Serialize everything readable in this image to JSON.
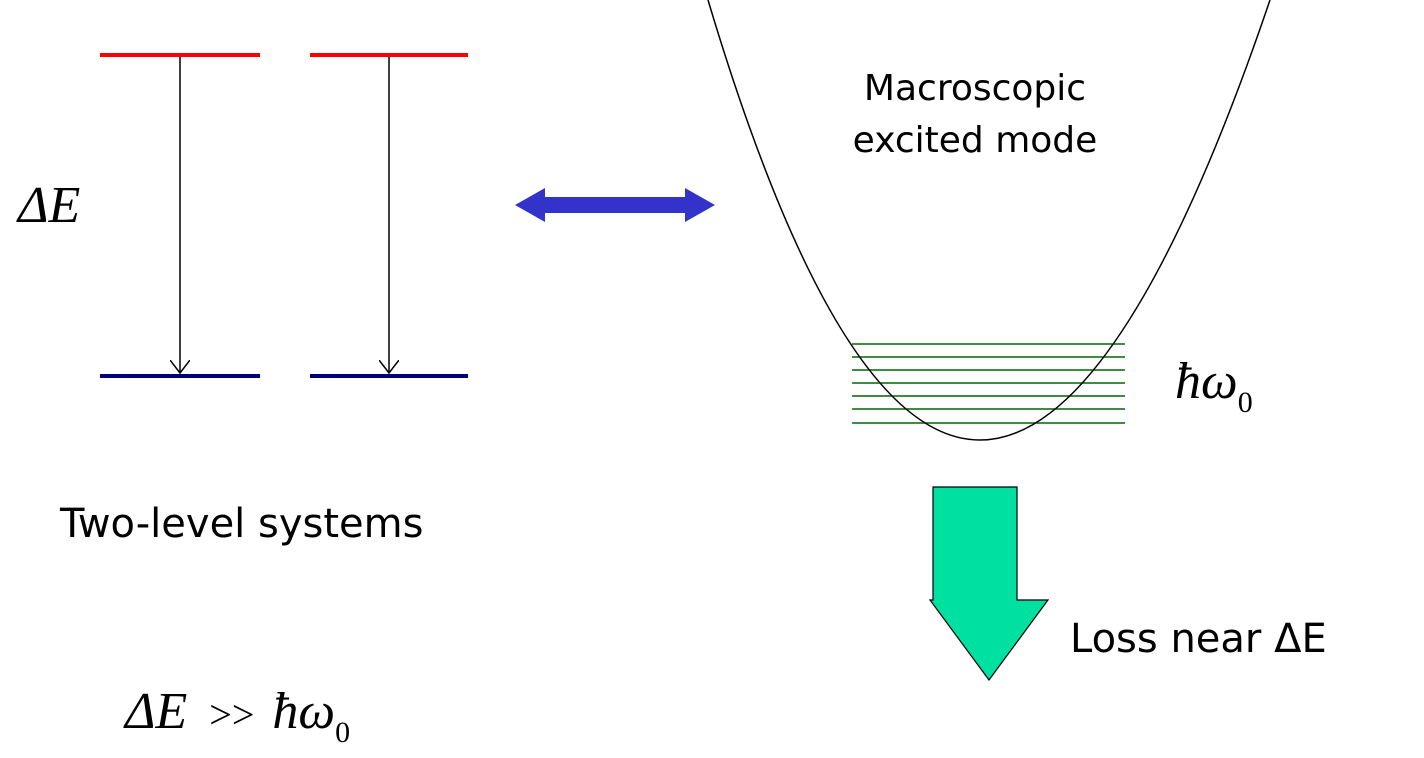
{
  "energy_label": "ΔE",
  "two_level_label": "Two-level systems",
  "mode_label": [
    "Macroscopic",
    "excited mode"
  ],
  "mode_energy": {
    "symbol": "ħω",
    "subscript": "0"
  },
  "loss_label": "Loss near ΔE",
  "relation": {
    "left": "ΔE",
    "operator": ">>",
    "right": "ħω",
    "right_subscript": "0"
  }
}
